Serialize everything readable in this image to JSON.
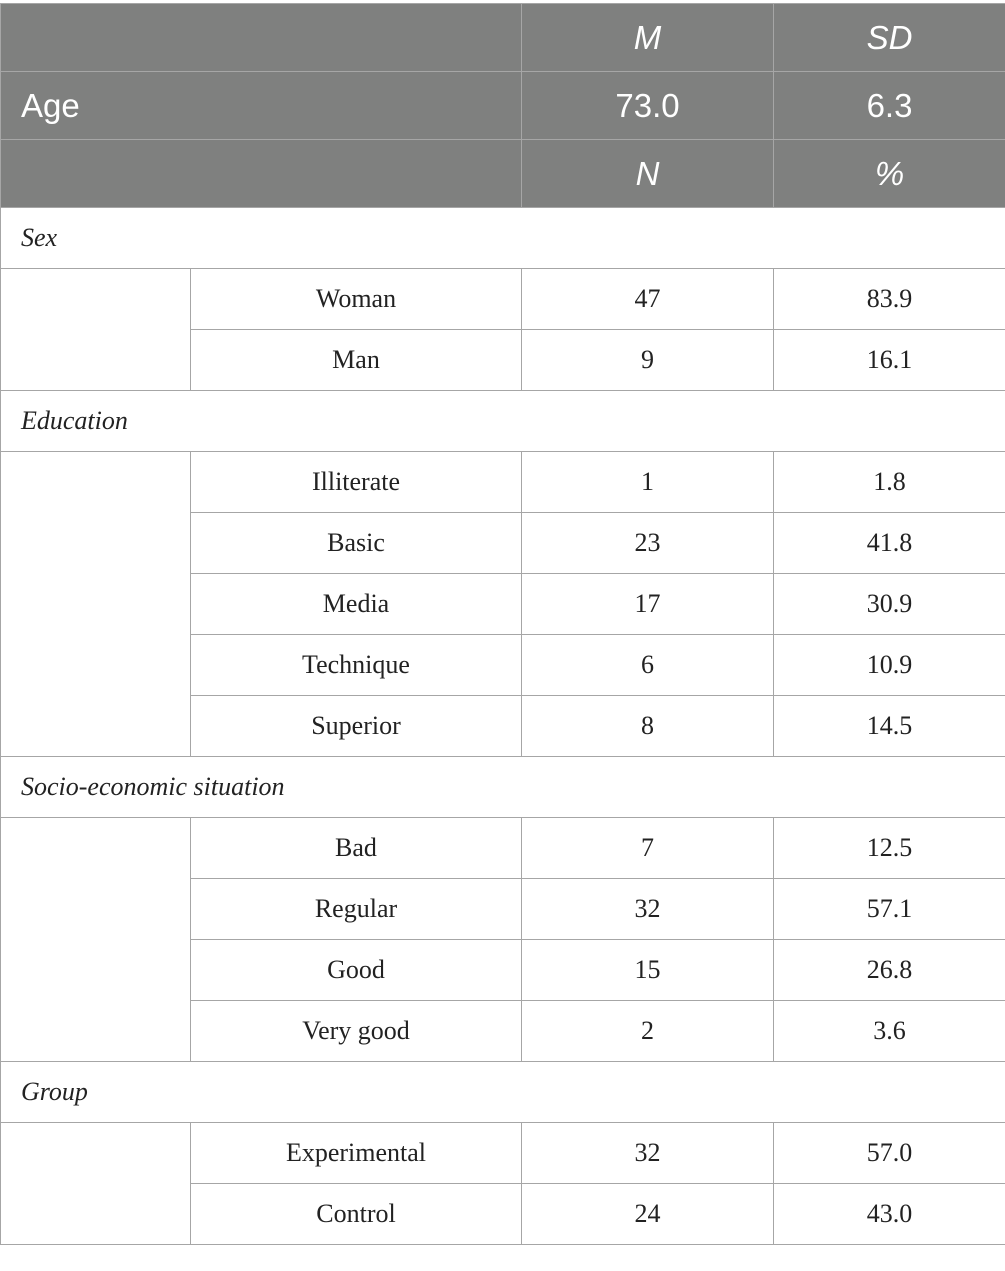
{
  "header": {
    "stat_cols": [
      "M",
      "SD"
    ],
    "age_row": {
      "label": "Age",
      "values": [
        "73.0",
        "6.3"
      ]
    },
    "count_cols": [
      "N",
      "%"
    ]
  },
  "sections": [
    {
      "title": "Sex",
      "rows": [
        {
          "category": "Woman",
          "n": "47",
          "pct": "83.9"
        },
        {
          "category": "Man",
          "n": "9",
          "pct": "16.1"
        }
      ]
    },
    {
      "title": "Education",
      "rows": [
        {
          "category": "Illiterate",
          "n": "1",
          "pct": "1.8"
        },
        {
          "category": "Basic",
          "n": "23",
          "pct": "41.8"
        },
        {
          "category": "Media",
          "n": "17",
          "pct": "30.9"
        },
        {
          "category": "Technique",
          "n": "6",
          "pct": "10.9"
        },
        {
          "category": "Superior",
          "n": "8",
          "pct": "14.5"
        }
      ]
    },
    {
      "title": "Socio-economic situation",
      "rows": [
        {
          "category": "Bad",
          "n": "7",
          "pct": "12.5"
        },
        {
          "category": "Regular",
          "n": "32",
          "pct": "57.1"
        },
        {
          "category": "Good",
          "n": "15",
          "pct": "26.8"
        },
        {
          "category": "Very good",
          "n": "2",
          "pct": "3.6"
        }
      ]
    },
    {
      "title": "Group",
      "rows": [
        {
          "category": "Experimental",
          "n": "32",
          "pct": "57.0"
        },
        {
          "category": "Control",
          "n": "24",
          "pct": "43.0"
        }
      ]
    }
  ]
}
